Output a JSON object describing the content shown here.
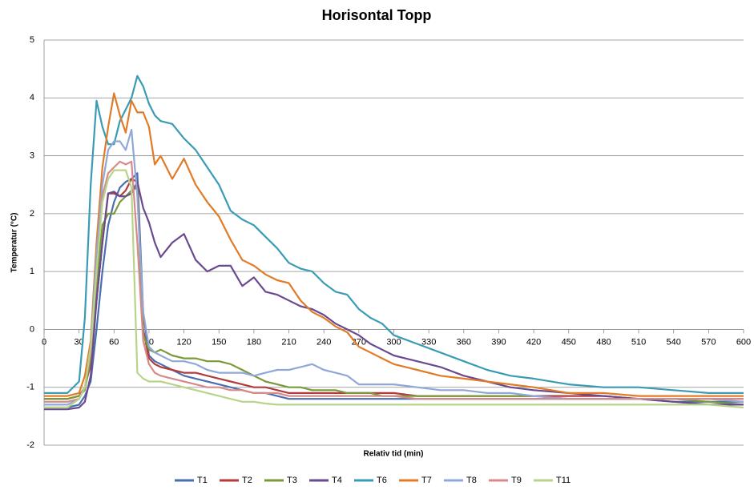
{
  "chart_data": {
    "type": "line",
    "title": "Horisontal Topp",
    "x_label": "Relativ tid (min)",
    "y_label": "Temperatur (°C)",
    "x": [
      0,
      20,
      30,
      35,
      40,
      45,
      50,
      55,
      60,
      65,
      70,
      75,
      80,
      85,
      90,
      95,
      100,
      110,
      120,
      130,
      140,
      150,
      160,
      170,
      180,
      190,
      200,
      210,
      220,
      230,
      240,
      250,
      260,
      270,
      280,
      290,
      300,
      320,
      340,
      360,
      380,
      400,
      420,
      450,
      480,
      510,
      540,
      570,
      600
    ],
    "xlim": [
      0,
      600
    ],
    "xticks": [
      0,
      30,
      60,
      90,
      120,
      150,
      180,
      210,
      240,
      270,
      300,
      330,
      360,
      390,
      420,
      450,
      480,
      510,
      540,
      570,
      600
    ],
    "ylim": [
      -2,
      5
    ],
    "yticks": [
      -2,
      -1,
      0,
      1,
      2,
      3,
      4,
      5
    ],
    "grid": true,
    "legend": "bottom",
    "series": [
      {
        "name": "T1",
        "color": "#4a6fb0",
        "values": [
          -1.35,
          -1.35,
          -1.3,
          -1.15,
          -0.9,
          0,
          1,
          1.8,
          2.2,
          2.45,
          2.55,
          2.6,
          2.7,
          0.3,
          -0.45,
          -0.55,
          -0.6,
          -0.7,
          -0.8,
          -0.85,
          -0.9,
          -0.95,
          -1,
          -1.05,
          -1.1,
          -1.1,
          -1.15,
          -1.2,
          -1.2,
          -1.2,
          -1.2,
          -1.2,
          -1.2,
          -1.2,
          -1.2,
          -1.2,
          -1.2,
          -1.2,
          -1.2,
          -1.2,
          -1.2,
          -1.2,
          -1.2,
          -1.2,
          -1.2,
          -1.2,
          -1.25,
          -1.25,
          -1.25
        ]
      },
      {
        "name": "T2",
        "color": "#b33b3b",
        "values": [
          -1.2,
          -1.2,
          -1.15,
          -1,
          -0.6,
          0.5,
          1.5,
          2.35,
          2.35,
          2.3,
          2.4,
          2.6,
          2.55,
          0,
          -0.5,
          -0.6,
          -0.65,
          -0.7,
          -0.75,
          -0.75,
          -0.8,
          -0.85,
          -0.9,
          -0.95,
          -1,
          -1,
          -1.05,
          -1.1,
          -1.1,
          -1.1,
          -1.1,
          -1.1,
          -1.1,
          -1.1,
          -1.1,
          -1.1,
          -1.1,
          -1.15,
          -1.15,
          -1.15,
          -1.15,
          -1.15,
          -1.15,
          -1.15,
          -1.15,
          -1.2,
          -1.2,
          -1.2,
          -1.2
        ]
      },
      {
        "name": "T3",
        "color": "#7a9a3a",
        "values": [
          -1.2,
          -1.2,
          -1.15,
          -1.05,
          -0.5,
          0.8,
          1.8,
          2,
          2,
          2.2,
          2.3,
          2.4,
          2.45,
          -0.1,
          -0.35,
          -0.4,
          -0.35,
          -0.45,
          -0.5,
          -0.5,
          -0.55,
          -0.55,
          -0.6,
          -0.7,
          -0.8,
          -0.9,
          -0.95,
          -1,
          -1,
          -1.05,
          -1.05,
          -1.05,
          -1.1,
          -1.1,
          -1.1,
          -1.15,
          -1.15,
          -1.15,
          -1.15,
          -1.15,
          -1.15,
          -1.15,
          -1.15,
          -1.2,
          -1.2,
          -1.2,
          -1.2,
          -1.25,
          -1.3
        ]
      },
      {
        "name": "T4",
        "color": "#6a4a8e",
        "values": [
          -1.38,
          -1.38,
          -1.35,
          -1.25,
          -0.8,
          0.5,
          1.5,
          2.35,
          2.38,
          2.3,
          2.3,
          2.35,
          2.55,
          2.1,
          1.85,
          1.5,
          1.25,
          1.5,
          1.65,
          1.2,
          1,
          1.1,
          1.1,
          0.75,
          0.9,
          0.65,
          0.6,
          0.5,
          0.4,
          0.35,
          0.25,
          0.1,
          0,
          -0.1,
          -0.25,
          -0.35,
          -0.45,
          -0.55,
          -0.65,
          -0.8,
          -0.9,
          -1,
          -1.05,
          -1.1,
          -1.15,
          -1.2,
          -1.25,
          -1.3,
          -1.3
        ]
      },
      {
        "name": "T6",
        "color": "#3a9bb5",
        "values": [
          -1.1,
          -1.1,
          -0.9,
          0.2,
          2.5,
          3.95,
          3.5,
          3.2,
          3.2,
          3.6,
          3.8,
          4,
          4.38,
          4.2,
          3.9,
          3.7,
          3.6,
          3.55,
          3.3,
          3.1,
          2.8,
          2.5,
          2.05,
          1.9,
          1.8,
          1.6,
          1.4,
          1.15,
          1.05,
          1,
          0.8,
          0.65,
          0.6,
          0.35,
          0.2,
          0.1,
          -0.1,
          -0.25,
          -0.4,
          -0.55,
          -0.7,
          -0.8,
          -0.85,
          -0.95,
          -1,
          -1,
          -1.05,
          -1.1,
          -1.1
        ]
      },
      {
        "name": "T7",
        "color": "#e07b28",
        "values": [
          -1.15,
          -1.15,
          -1.1,
          -0.8,
          -0.2,
          1.5,
          2.8,
          3.5,
          4.08,
          3.7,
          3.4,
          3.95,
          3.75,
          3.75,
          3.5,
          2.85,
          3,
          2.6,
          2.95,
          2.5,
          2.2,
          1.95,
          1.55,
          1.2,
          1.1,
          0.95,
          0.85,
          0.8,
          0.5,
          0.3,
          0.2,
          0.05,
          -0.05,
          -0.3,
          -0.4,
          -0.5,
          -0.6,
          -0.7,
          -0.8,
          -0.85,
          -0.9,
          -0.95,
          -1,
          -1.1,
          -1.1,
          -1.15,
          -1.15,
          -1.15,
          -1.15
        ]
      },
      {
        "name": "T8",
        "color": "#8fa8d8",
        "values": [
          -1.3,
          -1.3,
          -1.2,
          -1,
          -0.3,
          1.3,
          2.5,
          3.1,
          3.25,
          3.25,
          3.1,
          3.45,
          2.3,
          0.3,
          -0.3,
          -0.4,
          -0.45,
          -0.55,
          -0.55,
          -0.6,
          -0.7,
          -0.75,
          -0.75,
          -0.75,
          -0.8,
          -0.75,
          -0.7,
          -0.7,
          -0.65,
          -0.6,
          -0.7,
          -0.75,
          -0.8,
          -0.95,
          -0.95,
          -0.95,
          -0.95,
          -1,
          -1.05,
          -1.05,
          -1.1,
          -1.1,
          -1.15,
          -1.2,
          -1.2,
          -1.2,
          -1.2,
          -1.2,
          -1.25
        ]
      },
      {
        "name": "T9",
        "color": "#d88a8a",
        "values": [
          -1.25,
          -1.25,
          -1.2,
          -1,
          -0.4,
          1,
          2.3,
          2.7,
          2.8,
          2.9,
          2.85,
          2.9,
          1.5,
          -0.2,
          -0.6,
          -0.75,
          -0.8,
          -0.85,
          -0.9,
          -0.95,
          -1,
          -1,
          -1.05,
          -1.05,
          -1.1,
          -1.1,
          -1.1,
          -1.15,
          -1.15,
          -1.15,
          -1.15,
          -1.15,
          -1.15,
          -1.15,
          -1.15,
          -1.15,
          -1.15,
          -1.2,
          -1.2,
          -1.2,
          -1.2,
          -1.2,
          -1.2,
          -1.2,
          -1.2,
          -1.2,
          -1.2,
          -1.2,
          -1.2
        ]
      },
      {
        "name": "T11",
        "color": "#b8d48a",
        "values": [
          -1.35,
          -1.35,
          -1.2,
          -1,
          -0.3,
          1,
          2.2,
          2.6,
          2.75,
          2.75,
          2.75,
          2.45,
          -0.75,
          -0.85,
          -0.9,
          -0.9,
          -0.9,
          -0.95,
          -1,
          -1.05,
          -1.1,
          -1.15,
          -1.2,
          -1.25,
          -1.25,
          -1.28,
          -1.3,
          -1.3,
          -1.3,
          -1.3,
          -1.3,
          -1.3,
          -1.3,
          -1.3,
          -1.3,
          -1.3,
          -1.3,
          -1.3,
          -1.3,
          -1.3,
          -1.3,
          -1.3,
          -1.3,
          -1.3,
          -1.3,
          -1.3,
          -1.3,
          -1.3,
          -1.35
        ]
      }
    ]
  }
}
